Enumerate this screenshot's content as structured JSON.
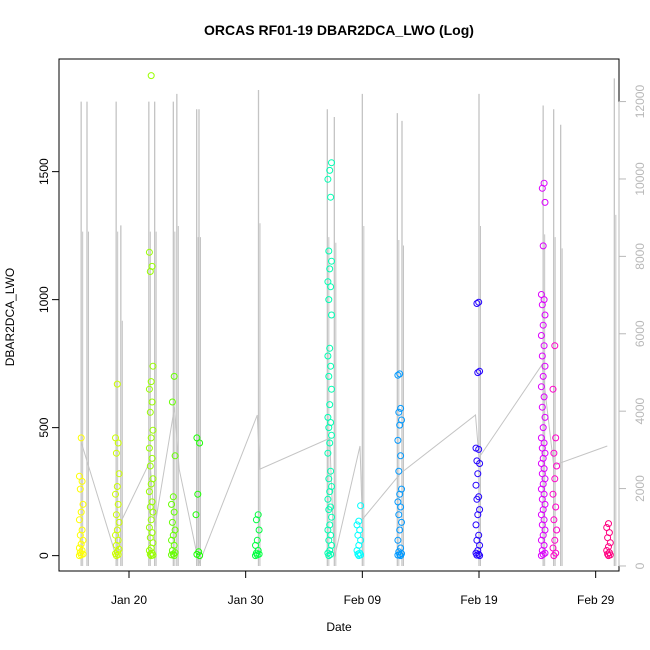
{
  "chart_data": {
    "type": "scatter",
    "title": "ORCAS RF01-19 DBAR2DCA_LWO (Log)",
    "xlabel": "Date",
    "ylabel": "DBAR2DCA_LWO",
    "x_ticks": [
      "Jan 20",
      "Jan 30",
      "Feb 09",
      "Feb 19",
      "Feb 29"
    ],
    "y_ticks": [
      "0",
      "500",
      "1000",
      "1500"
    ],
    "y2_ticks": [
      "0",
      "2000",
      "4000",
      "6000",
      "8000",
      "10000",
      "12000"
    ],
    "xlim": [
      "2016-01-14",
      "2016-03-02"
    ],
    "ylim": [
      -60,
      1940
    ],
    "y2lim": [
      -130,
      13100
    ],
    "grid": false,
    "series_colors": [
      "#ffff00",
      "#b3ff00",
      "#66ff00",
      "#1aff00",
      "#00ff33",
      "#00ff80",
      "#00ffcc",
      "#00e6ff",
      "#0099ff",
      "#004dff",
      "#0000ff",
      "#4d00ff",
      "#9900ff",
      "#e600ff",
      "#ff00cc",
      "#ff0080",
      "#ff0033"
    ],
    "gray_color": "#c4c4c4",
    "flights": [
      {
        "date": "2016-01-15.9",
        "color": "#ffff00",
        "values": [
          0,
          3,
          6,
          12,
          20,
          30,
          45,
          60,
          80,
          100,
          140,
          170,
          200,
          260,
          290,
          310,
          460
        ]
      },
      {
        "date": "2016-01-19.0",
        "color": "#ccff00",
        "values": [
          0,
          4,
          8,
          15,
          25,
          40,
          60,
          80,
          100,
          130,
          160,
          200,
          240,
          270,
          320,
          400,
          440,
          460,
          670
        ]
      },
      {
        "date": "2016-01-21.9",
        "color": "#99ff00",
        "values": [
          0,
          2,
          5,
          10,
          20,
          30,
          50,
          70,
          90,
          110,
          140,
          170,
          190,
          210,
          250,
          280,
          300,
          350,
          380,
          420,
          460,
          490,
          560,
          600,
          650,
          680,
          740,
          1110,
          1130,
          1185,
          1875
        ]
      },
      {
        "date": "2016-01-23.8",
        "color": "#66ff00",
        "values": [
          0,
          3,
          6,
          12,
          20,
          40,
          60,
          80,
          100,
          130,
          170,
          200,
          230,
          390,
          600,
          700
        ]
      },
      {
        "date": "2016-01-25.9",
        "color": "#1aff00",
        "values": [
          0,
          5,
          15,
          160,
          240,
          440,
          460
        ]
      },
      {
        "date": "2016-01-31.0",
        "color": "#00ff40",
        "values": [
          0,
          3,
          6,
          10,
          20,
          40,
          60,
          100,
          140,
          160
        ]
      },
      {
        "date": "2016-02-06.2",
        "color": "#00ffb3",
        "values": [
          0,
          5,
          10,
          20,
          40,
          60,
          80,
          100,
          120,
          150,
          180,
          190,
          220,
          250,
          270,
          300,
          330,
          400,
          440,
          470,
          500,
          520,
          540,
          590,
          650,
          700,
          740,
          780,
          810,
          940,
          1000,
          1050,
          1070,
          1120,
          1150,
          1190,
          1400,
          1470,
          1505,
          1535
        ]
      },
      {
        "date": "2016-02-08.7",
        "color": "#00ffff",
        "values": [
          0,
          3,
          6,
          10,
          20,
          40,
          60,
          80,
          100,
          120,
          135,
          195
        ]
      },
      {
        "date": "2016-02-12.2",
        "color": "#0099ff",
        "values": [
          0,
          2,
          4,
          8,
          15,
          30,
          60,
          100,
          130,
          160,
          190,
          210,
          240,
          260,
          330,
          390,
          450,
          510,
          530,
          560,
          575,
          705,
          710
        ]
      },
      {
        "date": "2016-02-18.9",
        "color": "#2200ff",
        "values": [
          0,
          2,
          5,
          10,
          20,
          40,
          60,
          80,
          120,
          160,
          180,
          220,
          230,
          275,
          320,
          360,
          370,
          415,
          420,
          715,
          720,
          985,
          990
        ]
      },
      {
        "date": "2016-02-24.5",
        "color": "#dd00ff",
        "values": [
          0,
          5,
          10,
          20,
          40,
          60,
          80,
          100,
          120,
          140,
          160,
          180,
          200,
          220,
          240,
          260,
          280,
          300,
          320,
          340,
          360,
          380,
          400,
          420,
          440,
          460,
          500,
          540,
          580,
          620,
          660,
          700,
          740,
          780,
          820,
          860,
          900,
          940,
          980,
          1000,
          1020,
          1210,
          1380,
          1435,
          1455
        ]
      },
      {
        "date": "2016-02-25.5",
        "color": "#ff00cc",
        "values": [
          0,
          10,
          30,
          60,
          100,
          140,
          190,
          240,
          300,
          350,
          400,
          460,
          650,
          820
        ]
      },
      {
        "date": "2016-03-01.1",
        "color": "#ff0080",
        "values": [
          0,
          3,
          6,
          12,
          20,
          35,
          50,
          70,
          90,
          110,
          125
        ]
      }
    ],
    "secondary_spikes": [
      {
        "date": "2016-01-15.9",
        "peak": 12000
      },
      {
        "date": "2016-01-16.4",
        "peak": 12000
      },
      {
        "date": "2016-01-18.9",
        "peak": 12000
      },
      {
        "date": "2016-01-19.3",
        "peak": 8800
      },
      {
        "date": "2016-01-21.7",
        "peak": 12000
      },
      {
        "date": "2016-01-22.2",
        "peak": 12000
      },
      {
        "date": "2016-01-23.8",
        "peak": 12000
      },
      {
        "date": "2016-01-24.1",
        "peak": 12200
      },
      {
        "date": "2016-01-25.8",
        "peak": 11800
      },
      {
        "date": "2016-01-26.0",
        "peak": 11800
      },
      {
        "date": "2016-01-31.1",
        "peak": 12300
      },
      {
        "date": "2016-02-06.0",
        "peak": 11800
      },
      {
        "date": "2016-02-06.6",
        "peak": 11600
      },
      {
        "date": "2016-02-09.0",
        "peak": 12200
      },
      {
        "date": "2016-02-12.0",
        "peak": 11700
      },
      {
        "date": "2016-02-12.4",
        "peak": 11500
      },
      {
        "date": "2016-02-19.0",
        "peak": 12200
      },
      {
        "date": "2016-02-24.5",
        "peak": 11900
      },
      {
        "date": "2016-02-25.4",
        "peak": 11800
      },
      {
        "date": "2016-02-26.0",
        "peak": 11400
      },
      {
        "date": "2016-03-01.6",
        "peak": 12600
      }
    ],
    "secondary_trend": [
      {
        "date": "2016-01-15.9",
        "value": 3200
      },
      {
        "date": "2016-01-19.0",
        "value": 150
      },
      {
        "date": "2016-01-19.4",
        "value": 1200
      },
      {
        "date": "2016-01-21.8",
        "value": 2700
      },
      {
        "date": "2016-01-22.2",
        "value": 1000
      },
      {
        "date": "2016-01-23.9",
        "value": 4100
      },
      {
        "date": "2016-01-24.3",
        "value": 2500
      },
      {
        "date": "2016-01-26.0",
        "value": 50
      },
      {
        "date": "2016-01-31.0",
        "value": 3900
      },
      {
        "date": "2016-01-31.2",
        "value": 2500
      },
      {
        "date": "2016-02-06.2",
        "value": 3300
      },
      {
        "date": "2016-02-06.6",
        "value": 200
      },
      {
        "date": "2016-02-08.8",
        "value": 3100
      },
      {
        "date": "2016-02-09.0",
        "value": 1200
      },
      {
        "date": "2016-02-12.3",
        "value": 2400
      },
      {
        "date": "2016-02-18.7",
        "value": 3900
      },
      {
        "date": "2016-02-19.0",
        "value": 2800
      },
      {
        "date": "2016-02-24.4",
        "value": 5200
      },
      {
        "date": "2016-02-25.4",
        "value": 2600
      },
      {
        "date": "2016-03-01.0",
        "value": 3100
      }
    ]
  }
}
